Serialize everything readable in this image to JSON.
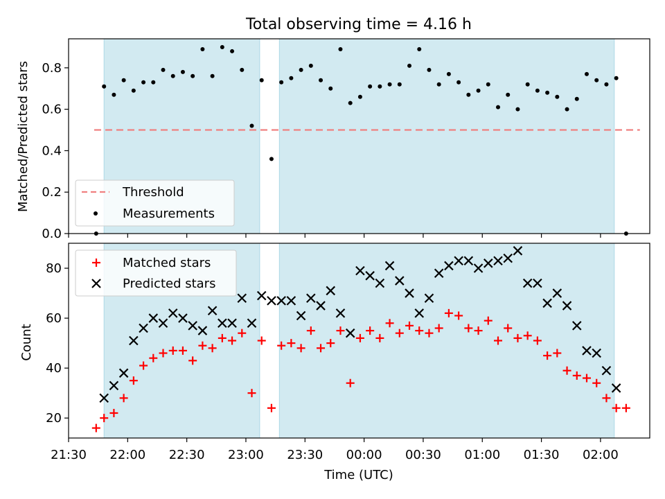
{
  "chart_data": {
    "type": "scatter",
    "title": "Total observing time = 4.16 h",
    "xlabel": "Time (UTC)",
    "x_ticks": [
      "21:30",
      "22:00",
      "22:30",
      "23:00",
      "23:30",
      "00:00",
      "00:30",
      "01:00",
      "01:30",
      "02:00"
    ],
    "x_range": [
      "21:30",
      "02:25"
    ],
    "shaded_intervals": [
      [
        "21:48",
        "23:07"
      ],
      [
        "23:17",
        "02:07"
      ]
    ],
    "shade_color": "#add8e6",
    "panels": [
      {
        "id": "ratio",
        "ylabel": "Matched/Predicted stars",
        "ylim": [
          0,
          0.94
        ],
        "y_ticks": [
          "0.0",
          "0.2",
          "0.4",
          "0.6",
          "0.8"
        ],
        "legend": {
          "placement": "lower-left",
          "entries": [
            "Threshold",
            "Measurements"
          ]
        },
        "threshold": {
          "name": "Threshold",
          "value": 0.5,
          "x_from": "21:43",
          "x_to": "02:20",
          "color": "#f08080",
          "style": "dashed"
        },
        "series": [
          {
            "name": "Measurements",
            "marker": "dot",
            "color": "#000000",
            "points": [
              [
                "21:44",
                0.0
              ],
              [
                "21:48",
                0.71
              ],
              [
                "21:53",
                0.67
              ],
              [
                "21:58",
                0.74
              ],
              [
                "22:03",
                0.69
              ],
              [
                "22:08",
                0.73
              ],
              [
                "22:13",
                0.73
              ],
              [
                "22:18",
                0.79
              ],
              [
                "22:23",
                0.76
              ],
              [
                "22:28",
                0.78
              ],
              [
                "22:33",
                0.76
              ],
              [
                "22:38",
                0.89
              ],
              [
                "22:43",
                0.76
              ],
              [
                "22:48",
                0.9
              ],
              [
                "22:53",
                0.88
              ],
              [
                "22:58",
                0.79
              ],
              [
                "23:03",
                0.52
              ],
              [
                "23:08",
                0.74
              ],
              [
                "23:13",
                0.36
              ],
              [
                "23:18",
                0.73
              ],
              [
                "23:23",
                0.75
              ],
              [
                "23:28",
                0.79
              ],
              [
                "23:33",
                0.81
              ],
              [
                "23:38",
                0.74
              ],
              [
                "23:43",
                0.7
              ],
              [
                "23:48",
                0.89
              ],
              [
                "23:53",
                0.63
              ],
              [
                "23:58",
                0.66
              ],
              [
                "00:03",
                0.71
              ],
              [
                "00:08",
                0.71
              ],
              [
                "00:13",
                0.72
              ],
              [
                "00:18",
                0.72
              ],
              [
                "00:23",
                0.81
              ],
              [
                "00:28",
                0.89
              ],
              [
                "00:33",
                0.79
              ],
              [
                "00:38",
                0.72
              ],
              [
                "00:43",
                0.77
              ],
              [
                "00:48",
                0.73
              ],
              [
                "00:53",
                0.67
              ],
              [
                "00:58",
                0.69
              ],
              [
                "01:03",
                0.72
              ],
              [
                "01:08",
                0.61
              ],
              [
                "01:13",
                0.67
              ],
              [
                "01:18",
                0.6
              ],
              [
                "01:23",
                0.72
              ],
              [
                "01:28",
                0.69
              ],
              [
                "01:33",
                0.68
              ],
              [
                "01:38",
                0.66
              ],
              [
                "01:43",
                0.6
              ],
              [
                "01:48",
                0.65
              ],
              [
                "01:53",
                0.77
              ],
              [
                "01:58",
                0.74
              ],
              [
                "02:03",
                0.72
              ],
              [
                "02:08",
                0.75
              ],
              [
                "02:13",
                0.0
              ]
            ]
          }
        ]
      },
      {
        "id": "counts",
        "ylabel": "Count",
        "ylim": [
          12,
          90
        ],
        "y_ticks": [
          "20",
          "40",
          "60",
          "80"
        ],
        "legend": {
          "placement": "upper-left",
          "entries": [
            "Matched stars",
            "Predicted stars"
          ]
        },
        "series": [
          {
            "name": "Matched stars",
            "marker": "plus",
            "color": "#ff0000",
            "points": [
              [
                "21:44",
                16
              ],
              [
                "21:48",
                20
              ],
              [
                "21:53",
                22
              ],
              [
                "21:58",
                28
              ],
              [
                "22:03",
                35
              ],
              [
                "22:08",
                41
              ],
              [
                "22:13",
                44
              ],
              [
                "22:18",
                46
              ],
              [
                "22:23",
                47
              ],
              [
                "22:28",
                47
              ],
              [
                "22:33",
                43
              ],
              [
                "22:38",
                49
              ],
              [
                "22:43",
                48
              ],
              [
                "22:48",
                52
              ],
              [
                "22:53",
                51
              ],
              [
                "22:58",
                54
              ],
              [
                "23:03",
                30
              ],
              [
                "23:08",
                51
              ],
              [
                "23:13",
                24
              ],
              [
                "23:18",
                49
              ],
              [
                "23:23",
                50
              ],
              [
                "23:28",
                48
              ],
              [
                "23:33",
                55
              ],
              [
                "23:38",
                48
              ],
              [
                "23:43",
                50
              ],
              [
                "23:48",
                55
              ],
              [
                "23:53",
                34
              ],
              [
                "23:58",
                52
              ],
              [
                "00:03",
                55
              ],
              [
                "00:08",
                52
              ],
              [
                "00:13",
                58
              ],
              [
                "00:18",
                54
              ],
              [
                "00:23",
                57
              ],
              [
                "00:28",
                55
              ],
              [
                "00:33",
                54
              ],
              [
                "00:38",
                56
              ],
              [
                "00:43",
                62
              ],
              [
                "00:48",
                61
              ],
              [
                "00:53",
                56
              ],
              [
                "00:58",
                55
              ],
              [
                "01:03",
                59
              ],
              [
                "01:08",
                51
              ],
              [
                "01:13",
                56
              ],
              [
                "01:18",
                52
              ],
              [
                "01:23",
                53
              ],
              [
                "01:28",
                51
              ],
              [
                "01:33",
                45
              ],
              [
                "01:38",
                46
              ],
              [
                "01:43",
                39
              ],
              [
                "01:48",
                37
              ],
              [
                "01:53",
                36
              ],
              [
                "01:58",
                34
              ],
              [
                "02:03",
                28
              ],
              [
                "02:08",
                24
              ],
              [
                "02:13",
                24
              ]
            ]
          },
          {
            "name": "Predicted stars",
            "marker": "x",
            "color": "#000000",
            "points": [
              [
                "21:48",
                28
              ],
              [
                "21:53",
                33
              ],
              [
                "21:58",
                38
              ],
              [
                "22:03",
                51
              ],
              [
                "22:08",
                56
              ],
              [
                "22:13",
                60
              ],
              [
                "22:18",
                58
              ],
              [
                "22:23",
                62
              ],
              [
                "22:28",
                60
              ],
              [
                "22:33",
                57
              ],
              [
                "22:38",
                55
              ],
              [
                "22:43",
                63
              ],
              [
                "22:48",
                58
              ],
              [
                "22:53",
                58
              ],
              [
                "22:58",
                68
              ],
              [
                "23:03",
                58
              ],
              [
                "23:08",
                69
              ],
              [
                "23:13",
                67
              ],
              [
                "23:18",
                67
              ],
              [
                "23:23",
                67
              ],
              [
                "23:28",
                61
              ],
              [
                "23:33",
                68
              ],
              [
                "23:38",
                65
              ],
              [
                "23:43",
                71
              ],
              [
                "23:48",
                62
              ],
              [
                "23:53",
                54
              ],
              [
                "23:58",
                79
              ],
              [
                "00:03",
                77
              ],
              [
                "00:08",
                74
              ],
              [
                "00:13",
                81
              ],
              [
                "00:18",
                75
              ],
              [
                "00:23",
                70
              ],
              [
                "00:28",
                62
              ],
              [
                "00:33",
                68
              ],
              [
                "00:38",
                78
              ],
              [
                "00:43",
                81
              ],
              [
                "00:48",
                83
              ],
              [
                "00:53",
                83
              ],
              [
                "00:58",
                80
              ],
              [
                "01:03",
                82
              ],
              [
                "01:08",
                83
              ],
              [
                "01:13",
                84
              ],
              [
                "01:18",
                87
              ],
              [
                "01:23",
                74
              ],
              [
                "01:28",
                74
              ],
              [
                "01:33",
                66
              ],
              [
                "01:38",
                70
              ],
              [
                "01:43",
                65
              ],
              [
                "01:48",
                57
              ],
              [
                "01:53",
                47
              ],
              [
                "01:58",
                46
              ],
              [
                "02:03",
                39
              ],
              [
                "02:08",
                32
              ]
            ]
          }
        ]
      }
    ]
  }
}
